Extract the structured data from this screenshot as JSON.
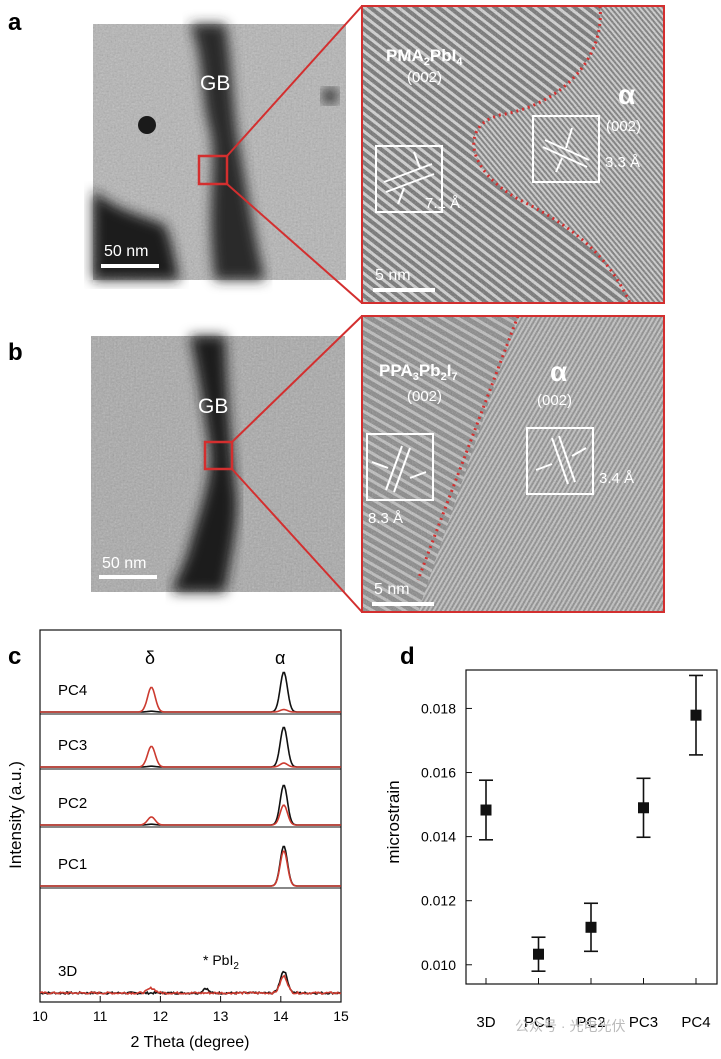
{
  "panels": {
    "a": {
      "label": "a",
      "overview": {
        "gb_label": "GB",
        "scale_bar": "50 nm"
      },
      "zoom": {
        "phase_left": "PMA",
        "phase_left_sub1": "2",
        "phase_left_mid": "PbI",
        "phase_left_sub2": "4",
        "phase_left_plane": "(002)",
        "phase_right": "α",
        "phase_right_plane": "(002)",
        "d_left": "7.1 Å",
        "d_right": "3.3  Å",
        "scale_bar": "5 nm"
      }
    },
    "b": {
      "label": "b",
      "overview": {
        "gb_label": "GB",
        "scale_bar": "50 nm"
      },
      "zoom": {
        "phase_left": "PPA",
        "phase_left_sub1": "3",
        "phase_left_mid": "Pb",
        "phase_left_sub2": "2",
        "phase_left_end": "I",
        "phase_left_sub3": "7",
        "phase_left_plane": "(002)",
        "phase_right": "α",
        "phase_right_plane": "(002)",
        "d_left": "8.3 Å",
        "d_right": "3.4  Å",
        "scale_bar": "5 nm"
      }
    },
    "c": {
      "label": "c",
      "peak_delta": "δ",
      "peak_alpha": "α",
      "pbi2_note": "* PbI",
      "pbi2_sub": "2",
      "colors": {
        "black": "#111111",
        "red": "#cc3b30"
      }
    },
    "d": {
      "label": "d"
    }
  },
  "chart_data": [
    {
      "type": "line",
      "xlabel": "2 Theta (degree)",
      "ylabel": "Intensity (a.u.)",
      "xlim": [
        10,
        15
      ],
      "x_ticks": [
        "10",
        "11",
        "12",
        "13",
        "14",
        "15"
      ],
      "stack_labels": [
        "PC4",
        "PC3",
        "PC2",
        "PC1",
        "3D"
      ],
      "peaks": {
        "delta_x": 11.85,
        "pbi2_x": 12.75,
        "alpha_x": 14.05
      },
      "series": [
        {
          "sample": "PC4",
          "trace": "black",
          "delta": 0.02,
          "alpha": 1.0
        },
        {
          "sample": "PC4",
          "trace": "red",
          "delta": 0.62,
          "alpha": 0.06
        },
        {
          "sample": "PC3",
          "trace": "black",
          "delta": 0.02,
          "alpha": 1.0
        },
        {
          "sample": "PC3",
          "trace": "red",
          "delta": 0.52,
          "alpha": 0.1
        },
        {
          "sample": "PC2",
          "trace": "black",
          "delta": 0.02,
          "alpha": 1.0
        },
        {
          "sample": "PC2",
          "trace": "red",
          "delta": 0.2,
          "alpha": 0.5
        },
        {
          "sample": "PC1",
          "trace": "black",
          "delta": 0.0,
          "alpha": 1.0
        },
        {
          "sample": "PC1",
          "trace": "red",
          "delta": 0.0,
          "alpha": 0.88
        },
        {
          "sample": "3D",
          "trace": "black",
          "delta": 0.0,
          "alpha": 0.55,
          "pbi2": 0.12
        },
        {
          "sample": "3D",
          "trace": "red",
          "delta": 0.12,
          "alpha": 0.42
        }
      ]
    },
    {
      "type": "scatter",
      "ylabel": "microstrain",
      "categories": [
        "3D",
        "PC1",
        "PC2",
        "PC3",
        "PC4"
      ],
      "values": [
        0.01483,
        0.01033,
        0.01117,
        0.0149,
        0.01779
      ],
      "errors": [
        0.00093,
        0.00053,
        0.00075,
        0.00092,
        0.00124
      ],
      "ylim": [
        0.0094,
        0.0192
      ],
      "y_ticks": [
        0.01,
        0.012,
        0.014,
        0.016,
        0.018
      ],
      "y_tick_labels": [
        "0.010",
        "0.012",
        "0.014",
        "0.016",
        "0.018"
      ]
    }
  ],
  "watermark": "公众号 · 光电光伏"
}
